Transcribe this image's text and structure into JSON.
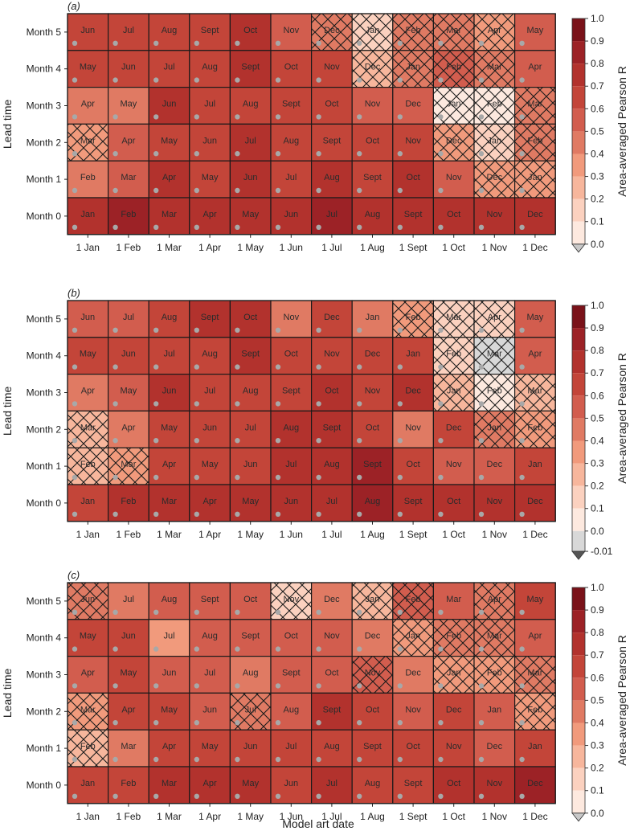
{
  "colors": {
    "cmap": [
      "#ffffff",
      "#fde9df",
      "#fbd1bf",
      "#f7b69c",
      "#f19a7c",
      "#e07a63",
      "#d25d4e",
      "#c34539",
      "#b2322d",
      "#9c2226",
      "#7a1219"
    ],
    "dot": "#a8a8a8",
    "grid": "#222222"
  },
  "xlabel": "Model art date",
  "ylabel": "Lead time",
  "chart_data": [
    {
      "type": "heatmap",
      "panel_label": "(a)",
      "x_categories": [
        "1 Jan",
        "1 Feb",
        "1 Mar",
        "1 Apr",
        "1 May",
        "1 Jun",
        "1 Jul",
        "1 Aug",
        "1 Sept",
        "1 Oct",
        "1 Nov",
        "1 Dec"
      ],
      "y_categories": [
        "Month 5",
        "Month 4",
        "Month 3",
        "Month 2",
        "Month 1",
        "Month 0"
      ],
      "cell_labels": [
        [
          "Jun",
          "Jul",
          "Aug",
          "Sept",
          "Oct",
          "Nov",
          "Dec",
          "Jan",
          "Feb",
          "Mar",
          "Apr",
          "May"
        ],
        [
          "May",
          "Jun",
          "Jul",
          "Aug",
          "Sept",
          "Oct",
          "Nov",
          "Dec",
          "Jan",
          "Feb",
          "Mar",
          "Apr"
        ],
        [
          "Apr",
          "May",
          "Jun",
          "Jul",
          "Aug",
          "Sept",
          "Oct",
          "Nov",
          "Dec",
          "Jan",
          "Feb",
          "Mar"
        ],
        [
          "Mar",
          "Apr",
          "May",
          "Jun",
          "Jul",
          "Aug",
          "Sept",
          "Oct",
          "Nov",
          "Dec",
          "Jan",
          "Feb"
        ],
        [
          "Feb",
          "Mar",
          "Apr",
          "May",
          "Jun",
          "Jul",
          "Aug",
          "Sept",
          "Oct",
          "Nov",
          "Dec",
          "Jan"
        ],
        [
          "Jan",
          "Feb",
          "Mar",
          "Apr",
          "May",
          "Jun",
          "Jul",
          "Aug",
          "Sept",
          "Oct",
          "Nov",
          "Dec"
        ]
      ],
      "values": [
        [
          0.62,
          0.62,
          0.65,
          0.65,
          0.75,
          0.55,
          0.45,
          0.15,
          0.45,
          0.42,
          0.35,
          0.55
        ],
        [
          0.65,
          0.65,
          0.65,
          0.65,
          0.72,
          0.62,
          0.62,
          0.25,
          0.45,
          0.52,
          0.42,
          0.58
        ],
        [
          0.45,
          0.42,
          0.72,
          0.65,
          0.65,
          0.65,
          0.65,
          0.55,
          0.52,
          0.08,
          0.02,
          0.45
        ],
        [
          0.32,
          0.52,
          0.65,
          0.65,
          0.75,
          0.65,
          0.62,
          0.65,
          0.62,
          0.35,
          0.15,
          0.42
        ],
        [
          0.45,
          0.55,
          0.72,
          0.65,
          0.72,
          0.65,
          0.72,
          0.62,
          0.78,
          0.55,
          0.32,
          0.35
        ],
        [
          0.72,
          0.82,
          0.75,
          0.75,
          0.75,
          0.72,
          0.82,
          0.72,
          0.72,
          0.72,
          0.72,
          0.72
        ]
      ],
      "hatched": [
        [
          false,
          false,
          false,
          false,
          false,
          false,
          true,
          true,
          true,
          true,
          true,
          false
        ],
        [
          false,
          false,
          false,
          false,
          false,
          false,
          false,
          true,
          true,
          true,
          true,
          false
        ],
        [
          false,
          false,
          false,
          false,
          false,
          false,
          false,
          false,
          false,
          true,
          true,
          true
        ],
        [
          true,
          false,
          false,
          false,
          false,
          false,
          false,
          false,
          false,
          true,
          true,
          true
        ],
        [
          false,
          false,
          false,
          false,
          false,
          false,
          false,
          false,
          false,
          false,
          true,
          true
        ],
        [
          false,
          false,
          false,
          false,
          false,
          false,
          false,
          false,
          false,
          false,
          false,
          false
        ]
      ],
      "dots": [
        [
          true,
          true,
          true,
          true,
          true,
          true,
          true,
          true,
          true,
          true,
          true,
          true
        ],
        [
          true,
          true,
          true,
          true,
          true,
          true,
          true,
          true,
          true,
          true,
          true,
          true
        ],
        [
          true,
          true,
          true,
          true,
          true,
          true,
          true,
          true,
          true,
          true,
          true,
          true
        ],
        [
          true,
          true,
          true,
          true,
          true,
          true,
          true,
          true,
          true,
          true,
          true,
          true
        ],
        [
          true,
          true,
          true,
          true,
          true,
          true,
          true,
          true,
          true,
          true,
          true,
          true
        ],
        [
          true,
          true,
          true,
          true,
          true,
          true,
          true,
          true,
          true,
          true,
          true,
          true
        ]
      ],
      "colorbar": {
        "label": "Area-averaged Pearson R",
        "ticks": [
          "1.0",
          "0.9",
          "0.8",
          "0.7",
          "0.6",
          "0.5",
          "0.4",
          "0.3",
          "0.2",
          "0.1",
          "0.0"
        ],
        "extend_color": "#c8c8c8"
      },
      "zlim": [
        0,
        1
      ]
    },
    {
      "type": "heatmap",
      "panel_label": "(b)",
      "x_categories": [
        "1 Jan",
        "1 Feb",
        "1 Mar",
        "1 Apr",
        "1 May",
        "1 Jun",
        "1 Jul",
        "1 Aug",
        "1 Sept",
        "1 Oct",
        "1 Nov",
        "1 Dec"
      ],
      "y_categories": [
        "Month 5",
        "Month 4",
        "Month 3",
        "Month 2",
        "Month 1",
        "Month 0"
      ],
      "cell_labels": [
        [
          "Jun",
          "Jul",
          "Aug",
          "Sept",
          "Oct",
          "Nov",
          "Dec",
          "Jan",
          "Feb",
          "Mar",
          "Apr",
          "May"
        ],
        [
          "May",
          "Jun",
          "Jul",
          "Aug",
          "Sept",
          "Oct",
          "Nov",
          "Dec",
          "Jan",
          "Feb",
          "Mar",
          "Apr"
        ],
        [
          "Apr",
          "May",
          "Jun",
          "Jul",
          "Aug",
          "Sept",
          "Oct",
          "Nov",
          "Dec",
          "Jan",
          "Feb",
          "Mar"
        ],
        [
          "Mar",
          "Apr",
          "May",
          "Jun",
          "Jul",
          "Aug",
          "Sept",
          "Oct",
          "Nov",
          "Dec",
          "Jan",
          "Feb"
        ],
        [
          "Feb",
          "Mar",
          "Apr",
          "May",
          "Jun",
          "Jul",
          "Aug",
          "Sept",
          "Oct",
          "Nov",
          "Dec",
          "Jan"
        ],
        [
          "Jan",
          "Feb",
          "Mar",
          "Apr",
          "May",
          "Jun",
          "Jul",
          "Aug",
          "Sept",
          "Oct",
          "Nov",
          "Dec"
        ]
      ],
      "values": [
        [
          0.55,
          0.55,
          0.62,
          0.75,
          0.72,
          0.45,
          0.65,
          0.45,
          0.35,
          0.15,
          0.15,
          0.55
        ],
        [
          0.65,
          0.65,
          0.62,
          0.62,
          0.72,
          0.62,
          0.65,
          0.65,
          0.62,
          0.12,
          -0.01,
          0.55
        ],
        [
          0.45,
          0.52,
          0.72,
          0.65,
          0.65,
          0.65,
          0.72,
          0.62,
          0.72,
          0.25,
          0.02,
          0.25
        ],
        [
          0.25,
          0.45,
          0.62,
          0.65,
          0.65,
          0.72,
          0.78,
          0.65,
          0.45,
          0.65,
          0.42,
          0.35
        ],
        [
          0.25,
          0.35,
          0.65,
          0.62,
          0.62,
          0.72,
          0.72,
          0.82,
          0.62,
          0.52,
          0.55,
          0.62
        ],
        [
          0.65,
          0.72,
          0.72,
          0.78,
          0.75,
          0.72,
          0.75,
          0.82,
          0.72,
          0.72,
          0.72,
          0.72
        ]
      ],
      "hatched": [
        [
          false,
          false,
          false,
          false,
          false,
          false,
          false,
          false,
          true,
          true,
          true,
          false
        ],
        [
          false,
          false,
          false,
          false,
          false,
          false,
          false,
          false,
          false,
          true,
          true,
          false
        ],
        [
          false,
          false,
          false,
          false,
          false,
          false,
          false,
          false,
          false,
          true,
          true,
          true
        ],
        [
          true,
          false,
          false,
          false,
          false,
          false,
          false,
          false,
          false,
          false,
          true,
          true
        ],
        [
          true,
          true,
          false,
          false,
          false,
          false,
          false,
          false,
          false,
          false,
          false,
          false
        ],
        [
          false,
          false,
          false,
          false,
          false,
          false,
          false,
          false,
          false,
          false,
          false,
          false
        ]
      ],
      "dots": [
        [
          true,
          true,
          true,
          true,
          true,
          true,
          true,
          true,
          true,
          true,
          true,
          true
        ],
        [
          true,
          true,
          true,
          true,
          true,
          true,
          true,
          true,
          true,
          true,
          true,
          true
        ],
        [
          true,
          true,
          true,
          true,
          true,
          true,
          true,
          true,
          true,
          true,
          true,
          true
        ],
        [
          true,
          true,
          true,
          true,
          true,
          true,
          true,
          true,
          true,
          true,
          true,
          true
        ],
        [
          true,
          true,
          true,
          true,
          true,
          true,
          true,
          true,
          true,
          true,
          true,
          true
        ],
        [
          true,
          true,
          true,
          true,
          true,
          true,
          true,
          true,
          true,
          true,
          true,
          true
        ]
      ],
      "colorbar": {
        "label": "Area-averaged Pearson R",
        "ticks": [
          "1.0",
          "0.9",
          "0.8",
          "0.7",
          "0.6",
          "0.5",
          "0.4",
          "0.3",
          "0.2",
          "0.1",
          "0.0",
          "-0.01"
        ],
        "extend_color": "#555555"
      },
      "zlim": [
        -0.01,
        1
      ]
    },
    {
      "type": "heatmap",
      "panel_label": "(c)",
      "x_categories": [
        "1 Jan",
        "1 Feb",
        "1 Mar",
        "1 Apr",
        "1 May",
        "1 Jun",
        "1 Jul",
        "1 Aug",
        "1 Sept",
        "1 Oct",
        "1 Nov",
        "1 Dec"
      ],
      "y_categories": [
        "Month 5",
        "Month 4",
        "Month 3",
        "Month 2",
        "Month 1",
        "Month 0"
      ],
      "cell_labels": [
        [
          "Jun",
          "Jul",
          "Aug",
          "Sept",
          "Oct",
          "Nov",
          "Dec",
          "Jan",
          "Feb",
          "Mar",
          "Apr",
          "May"
        ],
        [
          "May",
          "Jun",
          "Jul",
          "Aug",
          "Sept",
          "Oct",
          "Nov",
          "Dec",
          "Jan",
          "Feb",
          "Mar",
          "Apr"
        ],
        [
          "Apr",
          "May",
          "Jun",
          "Jul",
          "Aug",
          "Sept",
          "Oct",
          "Nov",
          "Dec",
          "Jan",
          "Feb",
          "Mar"
        ],
        [
          "Mar",
          "Apr",
          "May",
          "Jun",
          "Jul",
          "Aug",
          "Sept",
          "Oct",
          "Nov",
          "Dec",
          "Jan",
          "Feb"
        ],
        [
          "Feb",
          "Mar",
          "Apr",
          "May",
          "Jun",
          "Jul",
          "Aug",
          "Sept",
          "Oct",
          "Nov",
          "Dec",
          "Jan"
        ],
        [
          "Jan",
          "Feb",
          "Mar",
          "Apr",
          "May",
          "Jun",
          "Jul",
          "Aug",
          "Sept",
          "Oct",
          "Nov",
          "Dec"
        ]
      ],
      "values": [
        [
          0.42,
          0.45,
          0.55,
          0.55,
          0.55,
          0.15,
          0.45,
          0.25,
          0.55,
          0.55,
          0.45,
          0.65
        ],
        [
          0.62,
          0.62,
          0.35,
          0.55,
          0.55,
          0.55,
          0.55,
          0.45,
          0.32,
          0.45,
          0.45,
          0.55
        ],
        [
          0.55,
          0.62,
          0.55,
          0.52,
          0.45,
          0.55,
          0.55,
          0.52,
          0.45,
          0.32,
          0.35,
          0.45
        ],
        [
          0.35,
          0.62,
          0.62,
          0.55,
          0.45,
          0.55,
          0.72,
          0.62,
          0.55,
          0.62,
          0.55,
          0.35
        ],
        [
          0.25,
          0.45,
          0.62,
          0.62,
          0.62,
          0.62,
          0.62,
          0.62,
          0.65,
          0.62,
          0.55,
          0.62
        ],
        [
          0.62,
          0.62,
          0.75,
          0.72,
          0.72,
          0.62,
          0.72,
          0.65,
          0.65,
          0.72,
          0.72,
          0.85
        ]
      ],
      "hatched": [
        [
          true,
          false,
          false,
          false,
          false,
          true,
          false,
          true,
          true,
          false,
          true,
          false
        ],
        [
          false,
          false,
          false,
          false,
          false,
          false,
          false,
          false,
          true,
          true,
          true,
          false
        ],
        [
          false,
          false,
          false,
          false,
          false,
          false,
          false,
          true,
          false,
          true,
          true,
          true
        ],
        [
          true,
          false,
          false,
          false,
          true,
          false,
          false,
          false,
          false,
          false,
          false,
          true
        ],
        [
          true,
          false,
          false,
          false,
          false,
          false,
          false,
          false,
          false,
          false,
          false,
          false
        ],
        [
          false,
          false,
          false,
          false,
          false,
          false,
          false,
          false,
          false,
          false,
          false,
          false
        ]
      ],
      "dots": [
        [
          true,
          true,
          true,
          true,
          true,
          true,
          true,
          true,
          true,
          true,
          true,
          true
        ],
        [
          true,
          true,
          true,
          true,
          true,
          true,
          true,
          true,
          true,
          true,
          true,
          true
        ],
        [
          true,
          true,
          true,
          true,
          true,
          true,
          true,
          true,
          true,
          true,
          true,
          true
        ],
        [
          true,
          true,
          true,
          true,
          true,
          true,
          true,
          true,
          true,
          true,
          true,
          true
        ],
        [
          true,
          true,
          true,
          true,
          true,
          true,
          true,
          true,
          true,
          true,
          true,
          true
        ],
        [
          true,
          true,
          true,
          true,
          true,
          true,
          true,
          true,
          true,
          true,
          true,
          true
        ]
      ],
      "colorbar": {
        "label": "Area-averaged Pearson R",
        "ticks": [
          "1.0",
          "0.9",
          "0.8",
          "0.7",
          "0.6",
          "0.5",
          "0.4",
          "0.3",
          "0.2",
          "0.1",
          "0.0"
        ],
        "extend_color": "#c8c8c8"
      },
      "zlim": [
        0,
        1
      ]
    }
  ]
}
